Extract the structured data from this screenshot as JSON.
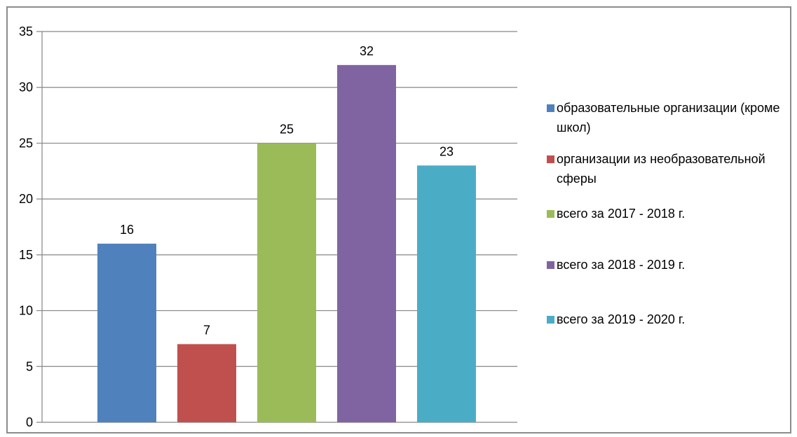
{
  "chart_data": {
    "type": "bar",
    "title": "",
    "xlabel": "",
    "ylabel": "",
    "ylim": [
      0,
      35
    ],
    "yticks": [
      0,
      5,
      10,
      15,
      20,
      25,
      30,
      35
    ],
    "grid": true,
    "legend_position": "right",
    "series": [
      {
        "name": "образовательные организации (кроме школ)",
        "value": 16,
        "color": "#4F81BD"
      },
      {
        "name": "организации из необразовательной сферы",
        "value": 7,
        "color": "#C0504D"
      },
      {
        "name": "всего за 2017 - 2018 г.",
        "value": 25,
        "color": "#9BBB59"
      },
      {
        "name": "всего за 2018 - 2019 г.",
        "value": 32,
        "color": "#8064A2"
      },
      {
        "name": "всего за 2019 - 2020 г.",
        "value": 23,
        "color": "#4BACC6"
      }
    ]
  }
}
